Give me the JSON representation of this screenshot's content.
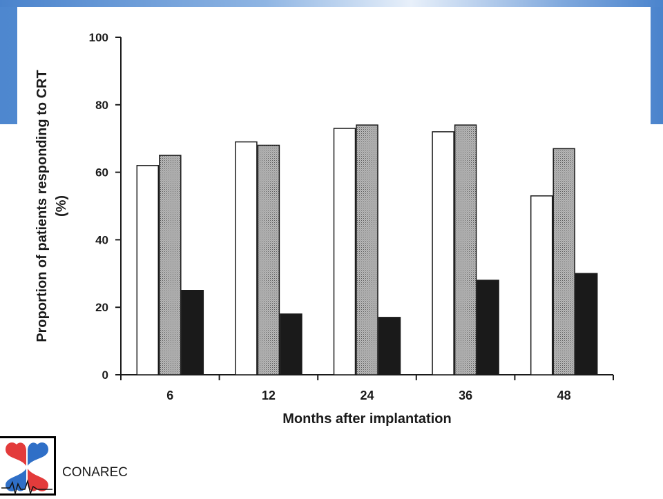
{
  "slide": {
    "org_name": "CONAREC",
    "colors": {
      "band": "#5b91d4",
      "accent_red": "#e33b3b",
      "accent_blue": "#2f6fc7"
    }
  },
  "chart_data": {
    "type": "bar",
    "title": "",
    "xlabel": "Months after implantation",
    "ylabel": "Proportion of patients responding to CRT (%)",
    "ylabel_lines": [
      "Proportion of patients responding to CRT",
      "(%)"
    ],
    "categories": [
      "6",
      "12",
      "24",
      "36",
      "48"
    ],
    "ylim": [
      0,
      100
    ],
    "yticks": [
      0,
      20,
      40,
      60,
      80,
      100
    ],
    "series": [
      {
        "name": "series-white",
        "fill": "#ffffff",
        "values": [
          62,
          69,
          73,
          72,
          53
        ]
      },
      {
        "name": "series-gray",
        "fill": "#a8a8a8",
        "values": [
          65,
          68,
          74,
          74,
          67
        ]
      },
      {
        "name": "series-black",
        "fill": "#1a1a1a",
        "values": [
          25,
          18,
          17,
          28,
          30
        ]
      }
    ]
  }
}
